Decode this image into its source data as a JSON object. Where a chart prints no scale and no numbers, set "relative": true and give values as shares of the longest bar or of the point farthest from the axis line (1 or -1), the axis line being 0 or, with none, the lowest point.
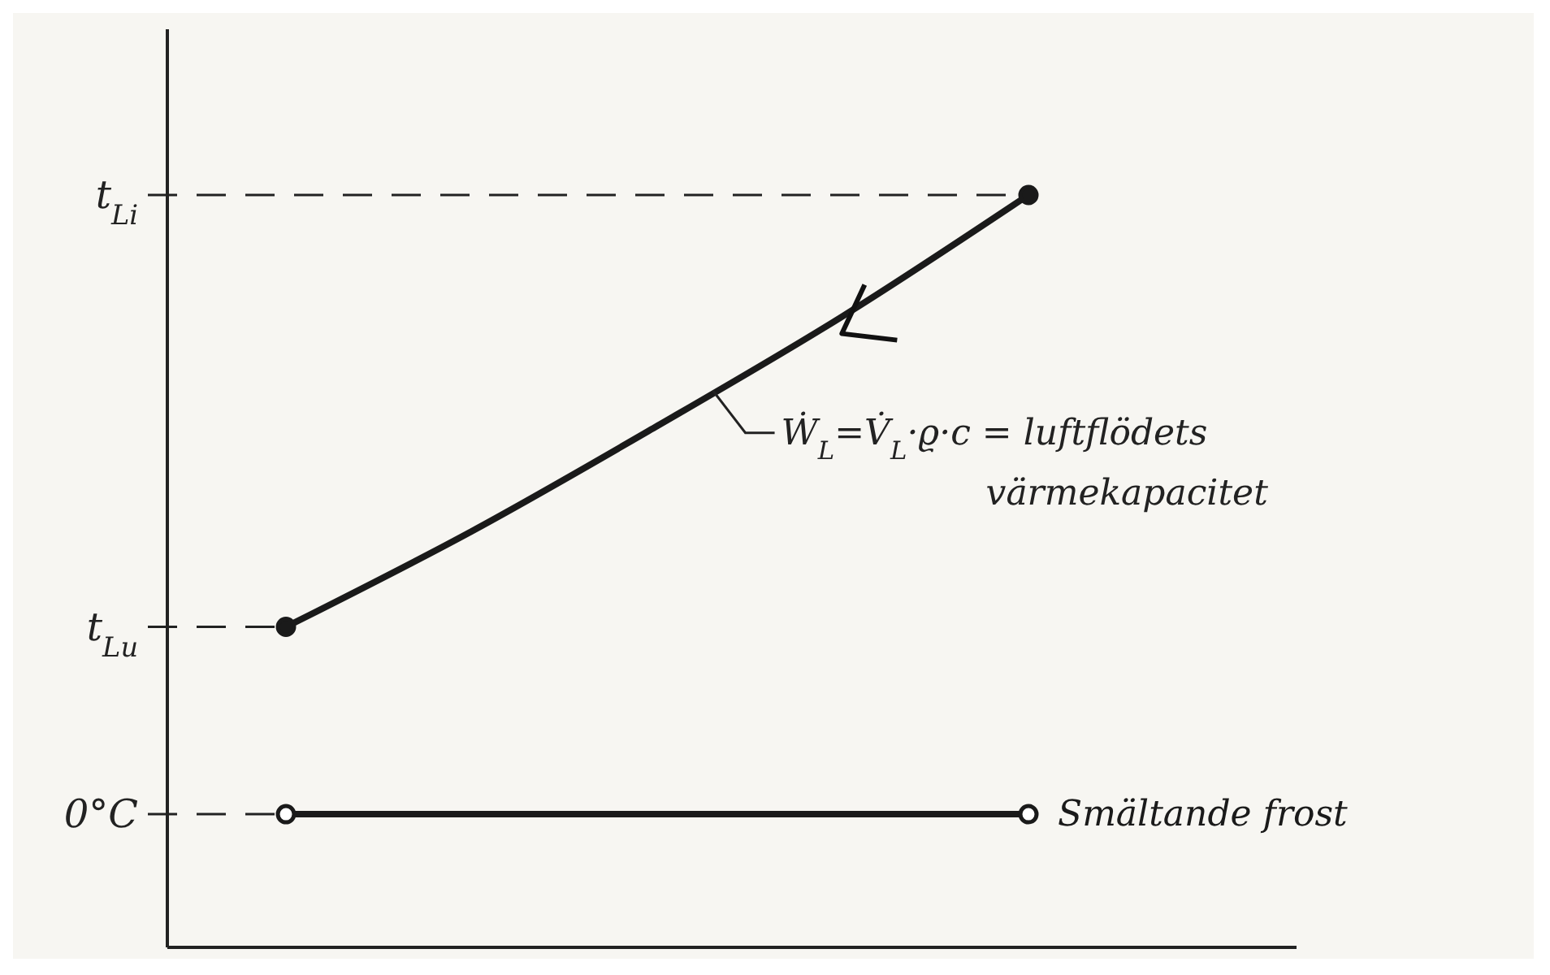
{
  "chart_data": {
    "type": "line",
    "relative": true,
    "categories": [
      null,
      null,
      null,
      null,
      null
    ],
    "line_style": "solid",
    "series": [
      {
        "color": "#1a1a1a",
        "values": [
          0.426,
          0.553,
          0.693,
          0.839,
          1
        ]
      },
      {
        "name": "Smältande frost",
        "color": "#1a1a1a",
        "values": [
          0.177,
          0.177,
          0.177,
          0.177,
          0.177
        ]
      }
    ],
    "ref_lines": [
      {
        "axis": "y",
        "value": 1,
        "label": "t$_{Li}$",
        "line_style": "dashed"
      },
      {
        "axis": "y",
        "value": 0.426,
        "label": "t$_{Lu}$",
        "line_style": "dashed"
      },
      {
        "axis": "y",
        "value": 0.177,
        "label": "0°C",
        "line_style": "dashed"
      }
    ],
    "annotations": [
      "Ẇ$_{L}$=V̇$_{L}$·ϱ·c = luftflödets värmekapacitet"
    ]
  }
}
